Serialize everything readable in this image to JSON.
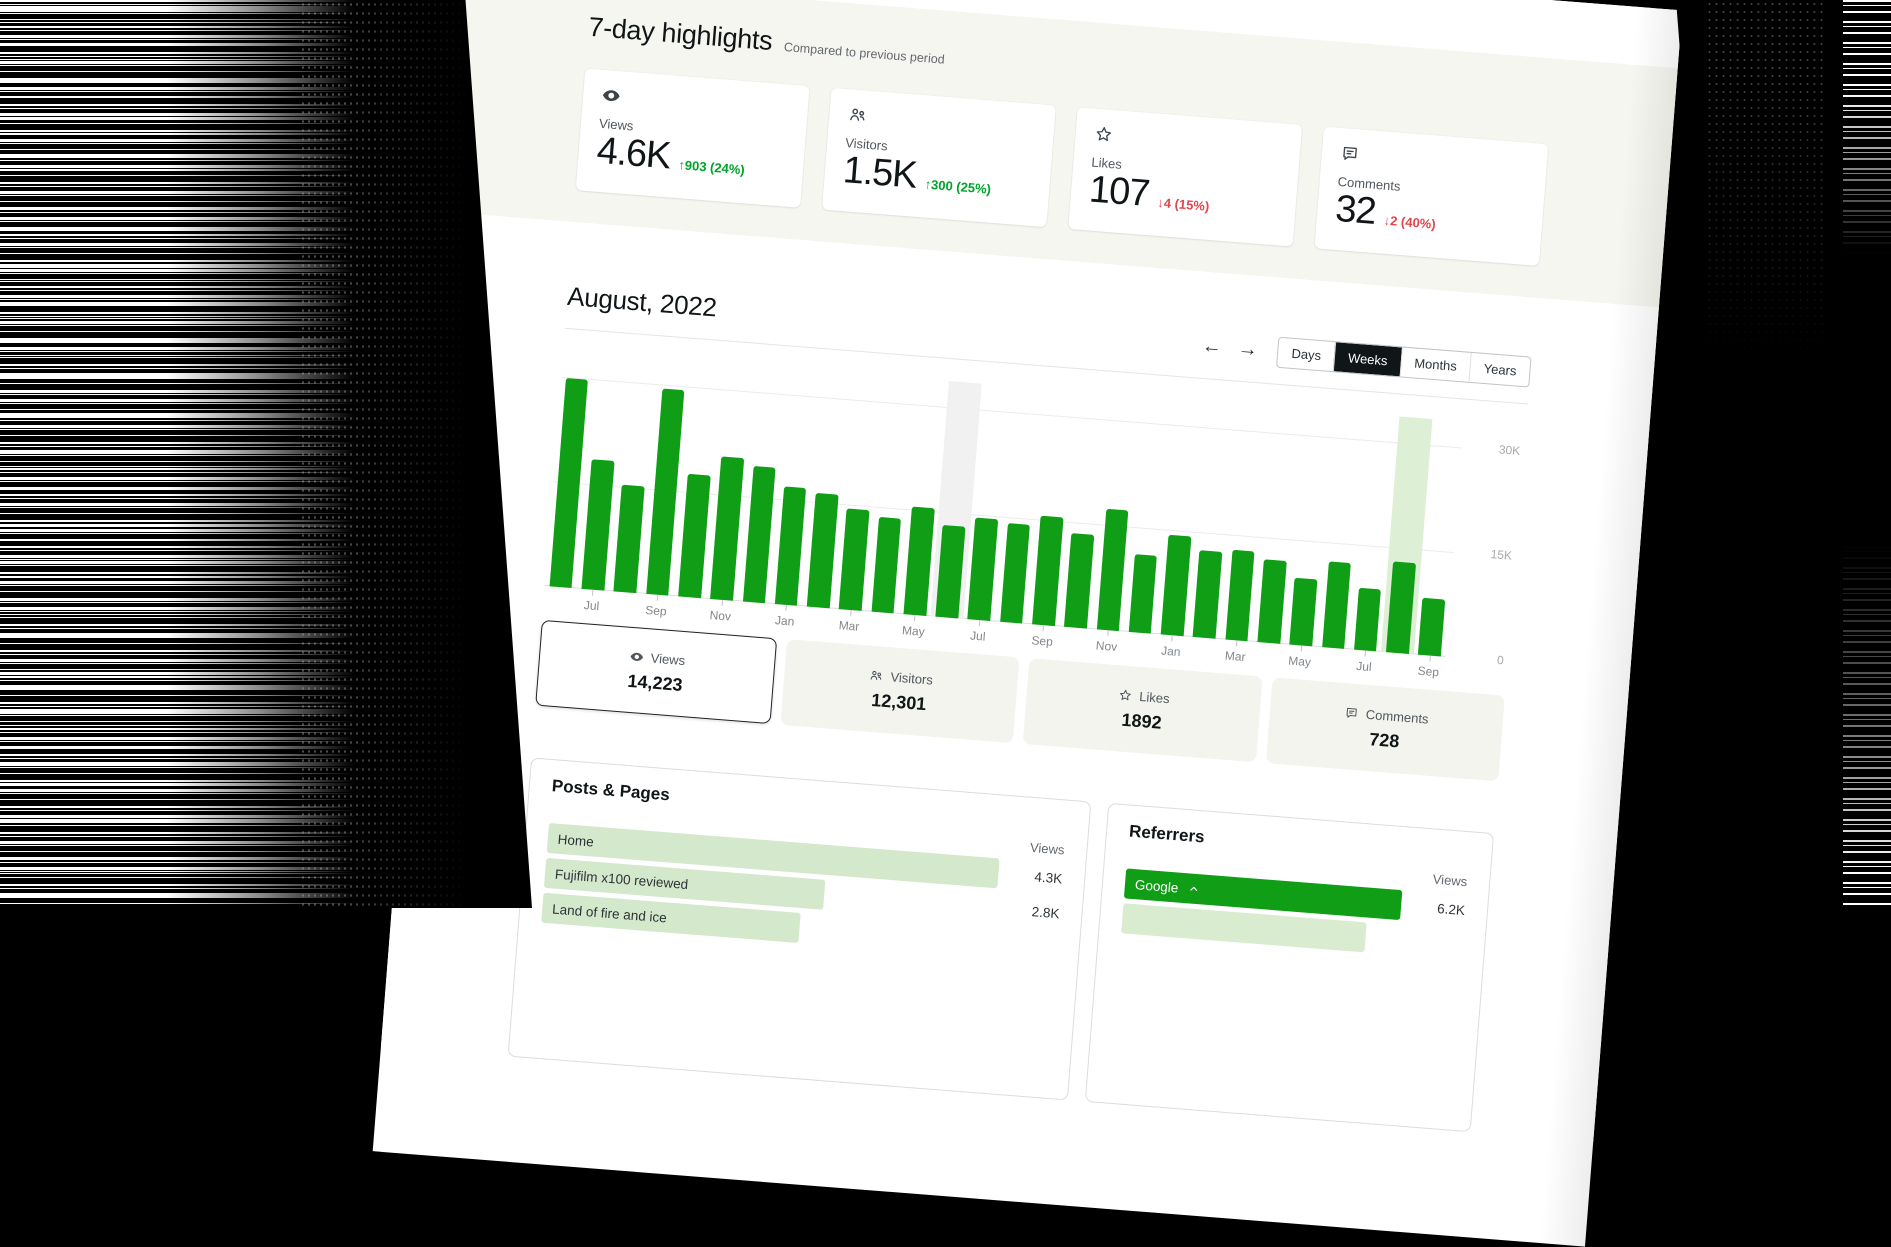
{
  "page": {
    "highlights": {
      "title": "7-day highlights",
      "subtitle": "Compared to previous period",
      "cards": [
        {
          "icon": "eye-icon",
          "label": "Views",
          "value": "4.6K",
          "delta": "↑903 (24%)",
          "trend": "up"
        },
        {
          "icon": "visitors-icon",
          "label": "Visitors",
          "value": "1.5K",
          "delta": "↑300 (25%)",
          "trend": "up"
        },
        {
          "icon": "star-icon",
          "label": "Likes",
          "value": "107",
          "delta": "↓4 (15%)",
          "trend": "down"
        },
        {
          "icon": "comment-icon",
          "label": "Comments",
          "value": "32",
          "delta": "↓2 (40%)",
          "trend": "down"
        }
      ]
    },
    "traffic": {
      "title": "August, 2022",
      "nav_prev": "←",
      "nav_next": "→",
      "period_tabs": [
        {
          "label": "Days",
          "selected": false
        },
        {
          "label": "Weeks",
          "selected": true
        },
        {
          "label": "Months",
          "selected": false
        },
        {
          "label": "Years",
          "selected": false
        }
      ],
      "metric_tabs": [
        {
          "icon": "eye-icon",
          "label": "Views",
          "value": "14,223",
          "selected": true
        },
        {
          "icon": "visitors-icon",
          "label": "Visitors",
          "value": "12,301",
          "selected": false
        },
        {
          "icon": "star-icon",
          "label": "Likes",
          "value": "1892",
          "selected": false
        },
        {
          "icon": "comment-icon",
          "label": "Comments",
          "value": "728",
          "selected": false
        }
      ]
    },
    "posts_pages": {
      "title": "Posts & Pages",
      "value_header": "Views",
      "rows": [
        {
          "label": "Home",
          "value": "4.3K",
          "bar_pct": 100
        },
        {
          "label": "Fujifilm x100 reviewed",
          "value": "2.8K",
          "bar_pct": 62
        },
        {
          "label": "Land of fire and ice",
          "value": "",
          "bar_pct": 57
        }
      ]
    },
    "referrers": {
      "title": "Referrers",
      "value_header": "Views",
      "rows": [
        {
          "label": "Google",
          "value": "6.2K",
          "bar_pct": 100,
          "style": "solid",
          "expanded": true
        },
        {
          "label": "",
          "value": "",
          "bar_pct": 88,
          "style": "light",
          "expanded": false
        }
      ]
    },
    "colors": {
      "bar_green": "#109e16",
      "light_green_bar": "#d4e8cb",
      "selected_column_green": "#ddefd4",
      "hover_column_gray": "#f1f1f1",
      "positive_delta": "#00a32a",
      "negative_delta": "#e0464c",
      "band_beige": "#f6f6f0",
      "tab_beige": "#f3f4ed",
      "selected_tab_black": "#101517"
    }
  },
  "chart_data": {
    "type": "bar",
    "title": "August, 2022",
    "series_name": "Views",
    "categories": [
      "",
      "Jul",
      "",
      "Sep",
      "",
      "Nov",
      "",
      "Jan",
      "",
      "Mar",
      "",
      "May",
      "",
      "Jul",
      "",
      "Sep",
      "",
      "Nov",
      "",
      "Jan",
      "",
      "Mar",
      "",
      "May",
      "",
      "Jul",
      "",
      "Sep"
    ],
    "values": [
      29800,
      18600,
      15300,
      29500,
      17600,
      20400,
      19400,
      16900,
      16300,
      14400,
      13600,
      15400,
      13100,
      14600,
      14200,
      15600,
      13400,
      17300,
      11200,
      14300,
      12400,
      12900,
      11800,
      9600,
      12300,
      8900,
      13000,
      8100
    ],
    "xlabel": "",
    "ylabel": "",
    "ylim": [
      0,
      30000
    ],
    "ytick_values": [
      30000,
      15000,
      0
    ],
    "ytick_labels": [
      "30K",
      "15K",
      "0"
    ],
    "grid": true,
    "legend": "none",
    "selected_index": 26,
    "hover_index": 12
  }
}
